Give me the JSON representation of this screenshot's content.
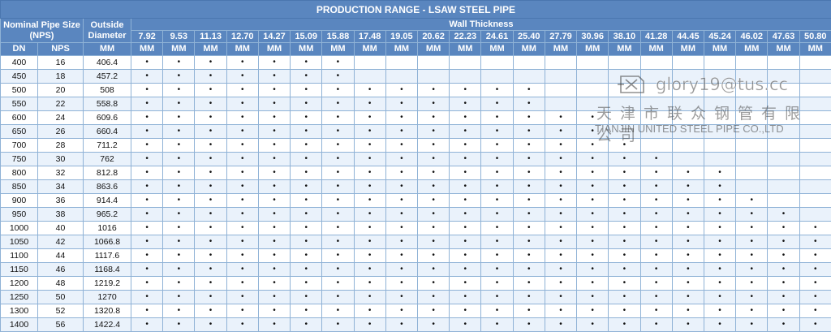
{
  "title": "PRODUCTION RANGE - LSAW STEEL PIPE",
  "headers": {
    "nominal": "Nominal Pipe Size (NPS)",
    "outside": "Outside Diameter",
    "wall": "Wall Thickness",
    "dn": "DN",
    "nps": "NPS",
    "mm": "MM"
  },
  "thicknesses": [
    "7.92",
    "9.53",
    "11.13",
    "12.70",
    "14.27",
    "15.09",
    "15.88",
    "17.48",
    "19.05",
    "20.62",
    "22.23",
    "24.61",
    "25.40",
    "27.79",
    "30.96",
    "38.10",
    "41.28",
    "44.45",
    "45.24",
    "46.02",
    "47.63",
    "50.80"
  ],
  "rows": [
    {
      "dn": "400",
      "nps": "16",
      "od": "406.4",
      "n": 7
    },
    {
      "dn": "450",
      "nps": "18",
      "od": "457.2",
      "n": 7
    },
    {
      "dn": "500",
      "nps": "20",
      "od": "508",
      "n": 13
    },
    {
      "dn": "550",
      "nps": "22",
      "od": "558.8",
      "n": 13
    },
    {
      "dn": "600",
      "nps": "24",
      "od": "609.6",
      "n": 15
    },
    {
      "dn": "650",
      "nps": "26",
      "od": "660.4",
      "n": 15
    },
    {
      "dn": "700",
      "nps": "28",
      "od": "711.2",
      "n": 16
    },
    {
      "dn": "750",
      "nps": "30",
      "od": "762",
      "n": 17
    },
    {
      "dn": "800",
      "nps": "32",
      "od": "812.8",
      "n": 19
    },
    {
      "dn": "850",
      "nps": "34",
      "od": "863.6",
      "n": 19
    },
    {
      "dn": "900",
      "nps": "36",
      "od": "914.4",
      "n": 20
    },
    {
      "dn": "950",
      "nps": "38",
      "od": "965.2",
      "n": 21
    },
    {
      "dn": "1000",
      "nps": "40",
      "od": "1016",
      "n": 22
    },
    {
      "dn": "1050",
      "nps": "42",
      "od": "1066.8",
      "n": 22
    },
    {
      "dn": "1100",
      "nps": "44",
      "od": "1117.6",
      "n": 22
    },
    {
      "dn": "1150",
      "nps": "46",
      "od": "1168.4",
      "n": 22
    },
    {
      "dn": "1200",
      "nps": "48",
      "od": "1219.2",
      "n": 22
    },
    {
      "dn": "1250",
      "nps": "50",
      "od": "1270",
      "n": 22
    },
    {
      "dn": "1300",
      "nps": "52",
      "od": "1320.8",
      "n": 22
    },
    {
      "dn": "1400",
      "nps": "56",
      "od": "1422.4",
      "n": 22
    }
  ],
  "dot": "•",
  "watermark": {
    "email": "glory19@tus.cc",
    "chinese": "天津市联众钢管有限公司",
    "english": "TIANJIN UNITED STEEL PIPE CO.,LTD"
  }
}
